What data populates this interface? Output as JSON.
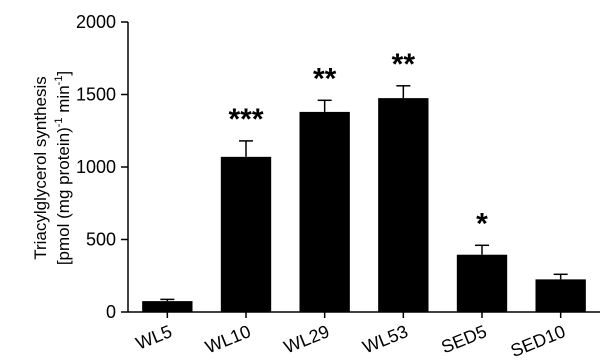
{
  "chart_data": {
    "type": "bar",
    "categories": [
      "WL5",
      "WL10",
      "WL29",
      "WL53",
      "SED5",
      "SED10"
    ],
    "values": [
      75,
      1070,
      1380,
      1475,
      395,
      225
    ],
    "errors": [
      12,
      110,
      80,
      85,
      65,
      35
    ],
    "significance": [
      "",
      "***",
      "**",
      "**",
      "*",
      ""
    ],
    "ylabel_line1": "Triacylglycerol synthesis",
    "ylabel_line2": "[pmol (mg protein)",
    "ylabel_sup1": "-1",
    "ylabel_mid": " min",
    "ylabel_sup2": "-1",
    "ylabel_end": "]",
    "ylim": [
      0,
      2000
    ],
    "yticks": [
      "0",
      "500",
      "1000",
      "1500",
      "2000"
    ],
    "bar_color": "#000000",
    "grid": false,
    "legend": "none"
  }
}
